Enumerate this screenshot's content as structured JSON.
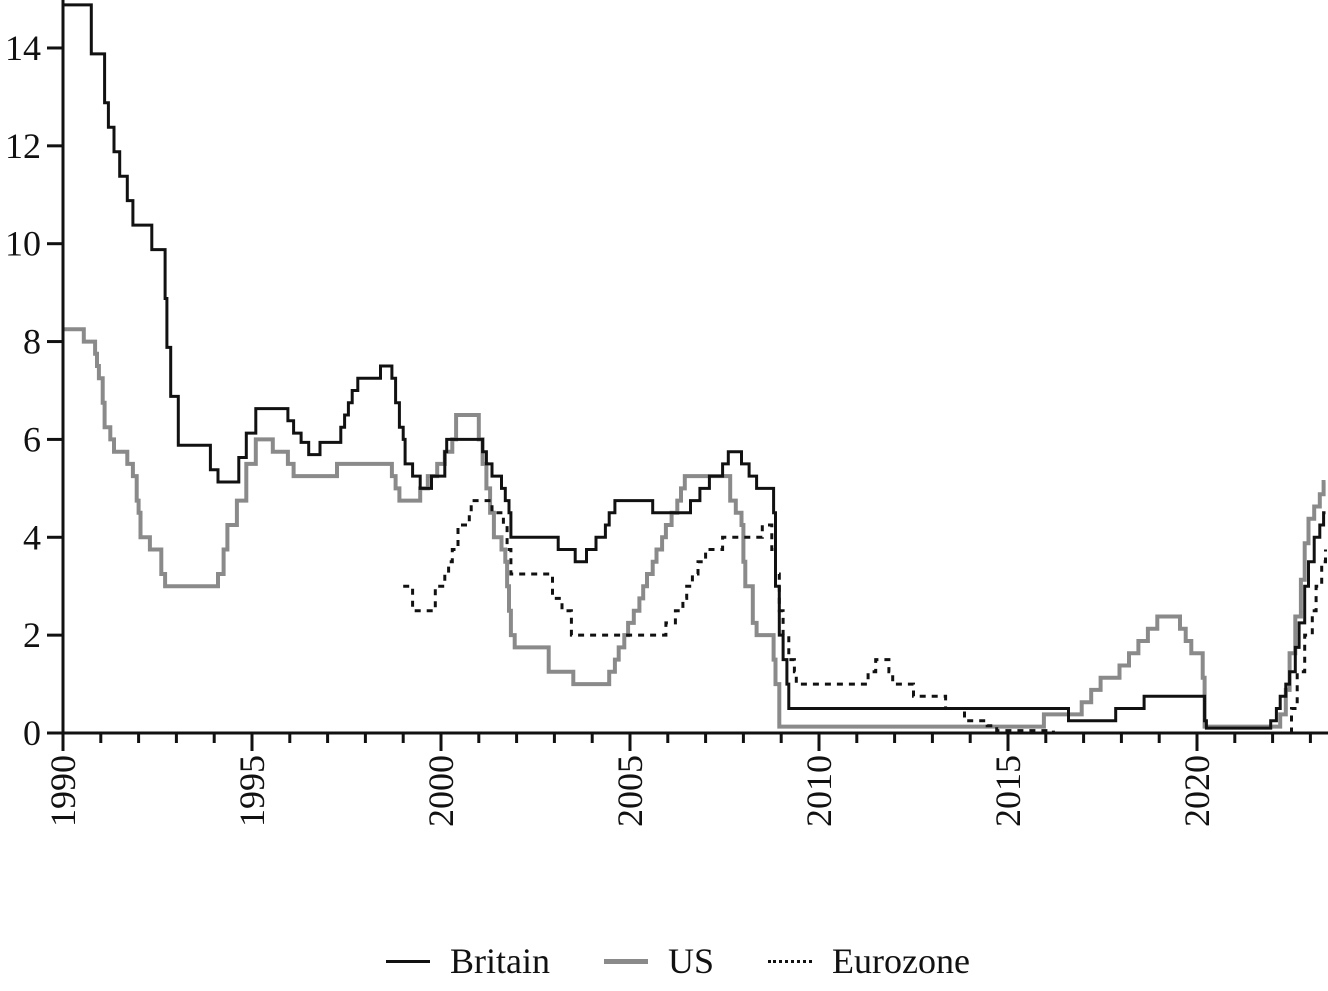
{
  "chart_data": {
    "type": "line",
    "title": "",
    "xlabel": "",
    "ylabel": "",
    "xlim": [
      1990,
      2023.4
    ],
    "ylim": [
      0,
      15
    ],
    "grid": false,
    "legend_position": "bottom",
    "x_ticks": [
      "1990",
      "1995",
      "2000",
      "2005",
      "2010",
      "2015",
      "2020"
    ],
    "y_ticks": [
      "0",
      "2",
      "4",
      "6",
      "8",
      "10",
      "12",
      "14"
    ],
    "series": [
      {
        "name": "Britain",
        "style": "solid",
        "color": "#111111",
        "points": [
          [
            1990.0,
            14.88
          ],
          [
            1990.75,
            13.88
          ],
          [
            1991.1,
            12.88
          ],
          [
            1991.2,
            12.38
          ],
          [
            1991.35,
            11.88
          ],
          [
            1991.5,
            11.38
          ],
          [
            1991.7,
            10.88
          ],
          [
            1991.85,
            10.38
          ],
          [
            1992.35,
            9.88
          ],
          [
            1992.7,
            8.88
          ],
          [
            1992.75,
            7.88
          ],
          [
            1992.85,
            6.88
          ],
          [
            1993.05,
            5.88
          ],
          [
            1993.9,
            5.38
          ],
          [
            1994.1,
            5.13
          ],
          [
            1994.65,
            5.63
          ],
          [
            1994.85,
            6.13
          ],
          [
            1995.1,
            6.63
          ],
          [
            1995.95,
            6.38
          ],
          [
            1996.1,
            6.13
          ],
          [
            1996.3,
            5.94
          ],
          [
            1996.5,
            5.69
          ],
          [
            1996.8,
            5.94
          ],
          [
            1997.35,
            6.25
          ],
          [
            1997.45,
            6.5
          ],
          [
            1997.55,
            6.75
          ],
          [
            1997.65,
            7.0
          ],
          [
            1997.8,
            7.25
          ],
          [
            1998.4,
            7.5
          ],
          [
            1998.7,
            7.25
          ],
          [
            1998.8,
            6.75
          ],
          [
            1998.9,
            6.25
          ],
          [
            1999.0,
            6.0
          ],
          [
            1999.05,
            5.5
          ],
          [
            1999.25,
            5.25
          ],
          [
            1999.45,
            5.0
          ],
          [
            1999.75,
            5.25
          ],
          [
            2000.1,
            5.75
          ],
          [
            2000.15,
            6.0
          ],
          [
            2001.1,
            5.75
          ],
          [
            2001.2,
            5.5
          ],
          [
            2001.35,
            5.25
          ],
          [
            2001.6,
            5.0
          ],
          [
            2001.7,
            4.75
          ],
          [
            2001.8,
            4.5
          ],
          [
            2001.85,
            4.0
          ],
          [
            2003.1,
            3.75
          ],
          [
            2003.55,
            3.5
          ],
          [
            2003.85,
            3.75
          ],
          [
            2004.1,
            4.0
          ],
          [
            2004.35,
            4.25
          ],
          [
            2004.45,
            4.5
          ],
          [
            2004.6,
            4.75
          ],
          [
            2005.6,
            4.5
          ],
          [
            2006.6,
            4.75
          ],
          [
            2006.85,
            5.0
          ],
          [
            2007.1,
            5.25
          ],
          [
            2007.45,
            5.5
          ],
          [
            2007.6,
            5.75
          ],
          [
            2007.95,
            5.5
          ],
          [
            2008.15,
            5.25
          ],
          [
            2008.35,
            5.0
          ],
          [
            2008.8,
            4.5
          ],
          [
            2008.85,
            3.0
          ],
          [
            2008.95,
            2.0
          ],
          [
            2009.05,
            1.5
          ],
          [
            2009.15,
            1.0
          ],
          [
            2009.2,
            0.5
          ],
          [
            2016.6,
            0.25
          ],
          [
            2017.85,
            0.5
          ],
          [
            2018.6,
            0.75
          ],
          [
            2020.2,
            0.25
          ],
          [
            2020.25,
            0.1
          ],
          [
            2021.95,
            0.25
          ],
          [
            2022.1,
            0.5
          ],
          [
            2022.2,
            0.75
          ],
          [
            2022.35,
            1.0
          ],
          [
            2022.45,
            1.25
          ],
          [
            2022.6,
            1.75
          ],
          [
            2022.7,
            2.25
          ],
          [
            2022.85,
            3.0
          ],
          [
            2022.95,
            3.5
          ],
          [
            2023.1,
            4.0
          ],
          [
            2023.25,
            4.25
          ],
          [
            2023.35,
            4.5
          ]
        ]
      },
      {
        "name": "US",
        "style": "solid",
        "color": "#8a8a8a",
        "points": [
          [
            1990.0,
            8.25
          ],
          [
            1990.55,
            8.0
          ],
          [
            1990.85,
            7.75
          ],
          [
            1990.9,
            7.5
          ],
          [
            1990.95,
            7.25
          ],
          [
            1991.05,
            6.75
          ],
          [
            1991.1,
            6.25
          ],
          [
            1991.25,
            6.0
          ],
          [
            1991.35,
            5.75
          ],
          [
            1991.7,
            5.5
          ],
          [
            1991.85,
            5.25
          ],
          [
            1991.95,
            4.75
          ],
          [
            1992.0,
            4.5
          ],
          [
            1992.05,
            4.0
          ],
          [
            1992.3,
            3.75
          ],
          [
            1992.6,
            3.25
          ],
          [
            1992.7,
            3.0
          ],
          [
            1994.1,
            3.25
          ],
          [
            1994.25,
            3.75
          ],
          [
            1994.35,
            4.25
          ],
          [
            1994.6,
            4.75
          ],
          [
            1994.85,
            5.5
          ],
          [
            1995.1,
            6.0
          ],
          [
            1995.55,
            5.75
          ],
          [
            1995.95,
            5.5
          ],
          [
            1996.1,
            5.25
          ],
          [
            1997.25,
            5.5
          ],
          [
            1998.7,
            5.25
          ],
          [
            1998.8,
            5.0
          ],
          [
            1998.9,
            4.75
          ],
          [
            1999.45,
            5.0
          ],
          [
            1999.65,
            5.25
          ],
          [
            1999.9,
            5.5
          ],
          [
            2000.1,
            5.75
          ],
          [
            2000.3,
            6.0
          ],
          [
            2000.4,
            6.5
          ],
          [
            2001.0,
            6.0
          ],
          [
            2001.1,
            5.5
          ],
          [
            2001.2,
            5.0
          ],
          [
            2001.3,
            4.5
          ],
          [
            2001.4,
            4.0
          ],
          [
            2001.6,
            3.75
          ],
          [
            2001.7,
            3.5
          ],
          [
            2001.75,
            3.0
          ],
          [
            2001.8,
            2.5
          ],
          [
            2001.85,
            2.0
          ],
          [
            2001.95,
            1.75
          ],
          [
            2002.85,
            1.25
          ],
          [
            2003.5,
            1.0
          ],
          [
            2004.45,
            1.25
          ],
          [
            2004.6,
            1.5
          ],
          [
            2004.7,
            1.75
          ],
          [
            2004.85,
            2.0
          ],
          [
            2004.95,
            2.25
          ],
          [
            2005.1,
            2.5
          ],
          [
            2005.25,
            2.75
          ],
          [
            2005.35,
            3.0
          ],
          [
            2005.45,
            3.25
          ],
          [
            2005.6,
            3.5
          ],
          [
            2005.7,
            3.75
          ],
          [
            2005.85,
            4.0
          ],
          [
            2005.95,
            4.25
          ],
          [
            2006.1,
            4.5
          ],
          [
            2006.25,
            4.75
          ],
          [
            2006.35,
            5.0
          ],
          [
            2006.45,
            5.25
          ],
          [
            2007.65,
            4.75
          ],
          [
            2007.8,
            4.5
          ],
          [
            2007.95,
            4.25
          ],
          [
            2008.0,
            3.5
          ],
          [
            2008.05,
            3.0
          ],
          [
            2008.25,
            2.25
          ],
          [
            2008.35,
            2.0
          ],
          [
            2008.8,
            1.5
          ],
          [
            2008.85,
            1.0
          ],
          [
            2008.95,
            0.13
          ],
          [
            2015.95,
            0.38
          ],
          [
            2016.95,
            0.63
          ],
          [
            2017.2,
            0.88
          ],
          [
            2017.45,
            1.13
          ],
          [
            2017.95,
            1.38
          ],
          [
            2018.2,
            1.63
          ],
          [
            2018.45,
            1.88
          ],
          [
            2018.7,
            2.13
          ],
          [
            2018.95,
            2.38
          ],
          [
            2019.55,
            2.13
          ],
          [
            2019.7,
            1.88
          ],
          [
            2019.85,
            1.63
          ],
          [
            2020.15,
            1.13
          ],
          [
            2020.2,
            0.13
          ],
          [
            2022.2,
            0.38
          ],
          [
            2022.35,
            0.88
          ],
          [
            2022.45,
            1.63
          ],
          [
            2022.6,
            2.38
          ],
          [
            2022.75,
            3.13
          ],
          [
            2022.85,
            3.88
          ],
          [
            2022.95,
            4.38
          ],
          [
            2023.1,
            4.63
          ],
          [
            2023.25,
            4.88
          ],
          [
            2023.35,
            5.13
          ]
        ]
      },
      {
        "name": "Eurozone",
        "style": "dotted",
        "color": "#111111",
        "points": [
          [
            1999.0,
            3.0
          ],
          [
            1999.25,
            2.5
          ],
          [
            1999.85,
            3.0
          ],
          [
            2000.1,
            3.25
          ],
          [
            2000.2,
            3.5
          ],
          [
            2000.3,
            3.75
          ],
          [
            2000.45,
            4.25
          ],
          [
            2000.75,
            4.5
          ],
          [
            2000.8,
            4.75
          ],
          [
            2001.35,
            4.5
          ],
          [
            2001.65,
            4.25
          ],
          [
            2001.75,
            3.75
          ],
          [
            2001.85,
            3.25
          ],
          [
            2002.95,
            2.75
          ],
          [
            2003.2,
            2.5
          ],
          [
            2003.45,
            2.0
          ],
          [
            2005.95,
            2.25
          ],
          [
            2006.2,
            2.5
          ],
          [
            2006.4,
            2.75
          ],
          [
            2006.5,
            3.0
          ],
          [
            2006.65,
            3.25
          ],
          [
            2006.8,
            3.5
          ],
          [
            2007.0,
            3.75
          ],
          [
            2007.45,
            4.0
          ],
          [
            2008.5,
            4.25
          ],
          [
            2008.75,
            3.75
          ],
          [
            2008.85,
            3.25
          ],
          [
            2008.95,
            2.5
          ],
          [
            2009.05,
            2.0
          ],
          [
            2009.2,
            1.5
          ],
          [
            2009.35,
            1.25
          ],
          [
            2009.4,
            1.0
          ],
          [
            2011.3,
            1.25
          ],
          [
            2011.5,
            1.5
          ],
          [
            2011.85,
            1.25
          ],
          [
            2011.95,
            1.0
          ],
          [
            2012.5,
            0.75
          ],
          [
            2013.35,
            0.5
          ],
          [
            2013.85,
            0.25
          ],
          [
            2014.45,
            0.15
          ],
          [
            2014.7,
            0.05
          ],
          [
            2016.2,
            0.0
          ],
          [
            2022.5,
            0.5
          ],
          [
            2022.65,
            1.25
          ],
          [
            2022.85,
            2.0
          ],
          [
            2023.05,
            2.5
          ],
          [
            2023.15,
            3.0
          ],
          [
            2023.3,
            3.5
          ],
          [
            2023.4,
            3.75
          ]
        ]
      }
    ]
  },
  "legend": {
    "items": [
      {
        "label": "Britain",
        "color": "#111111",
        "style": "solid"
      },
      {
        "label": "US",
        "color": "#8a8a8a",
        "style": "solid"
      },
      {
        "label": "Eurozone",
        "color": "#111111",
        "style": "dotted"
      }
    ]
  }
}
